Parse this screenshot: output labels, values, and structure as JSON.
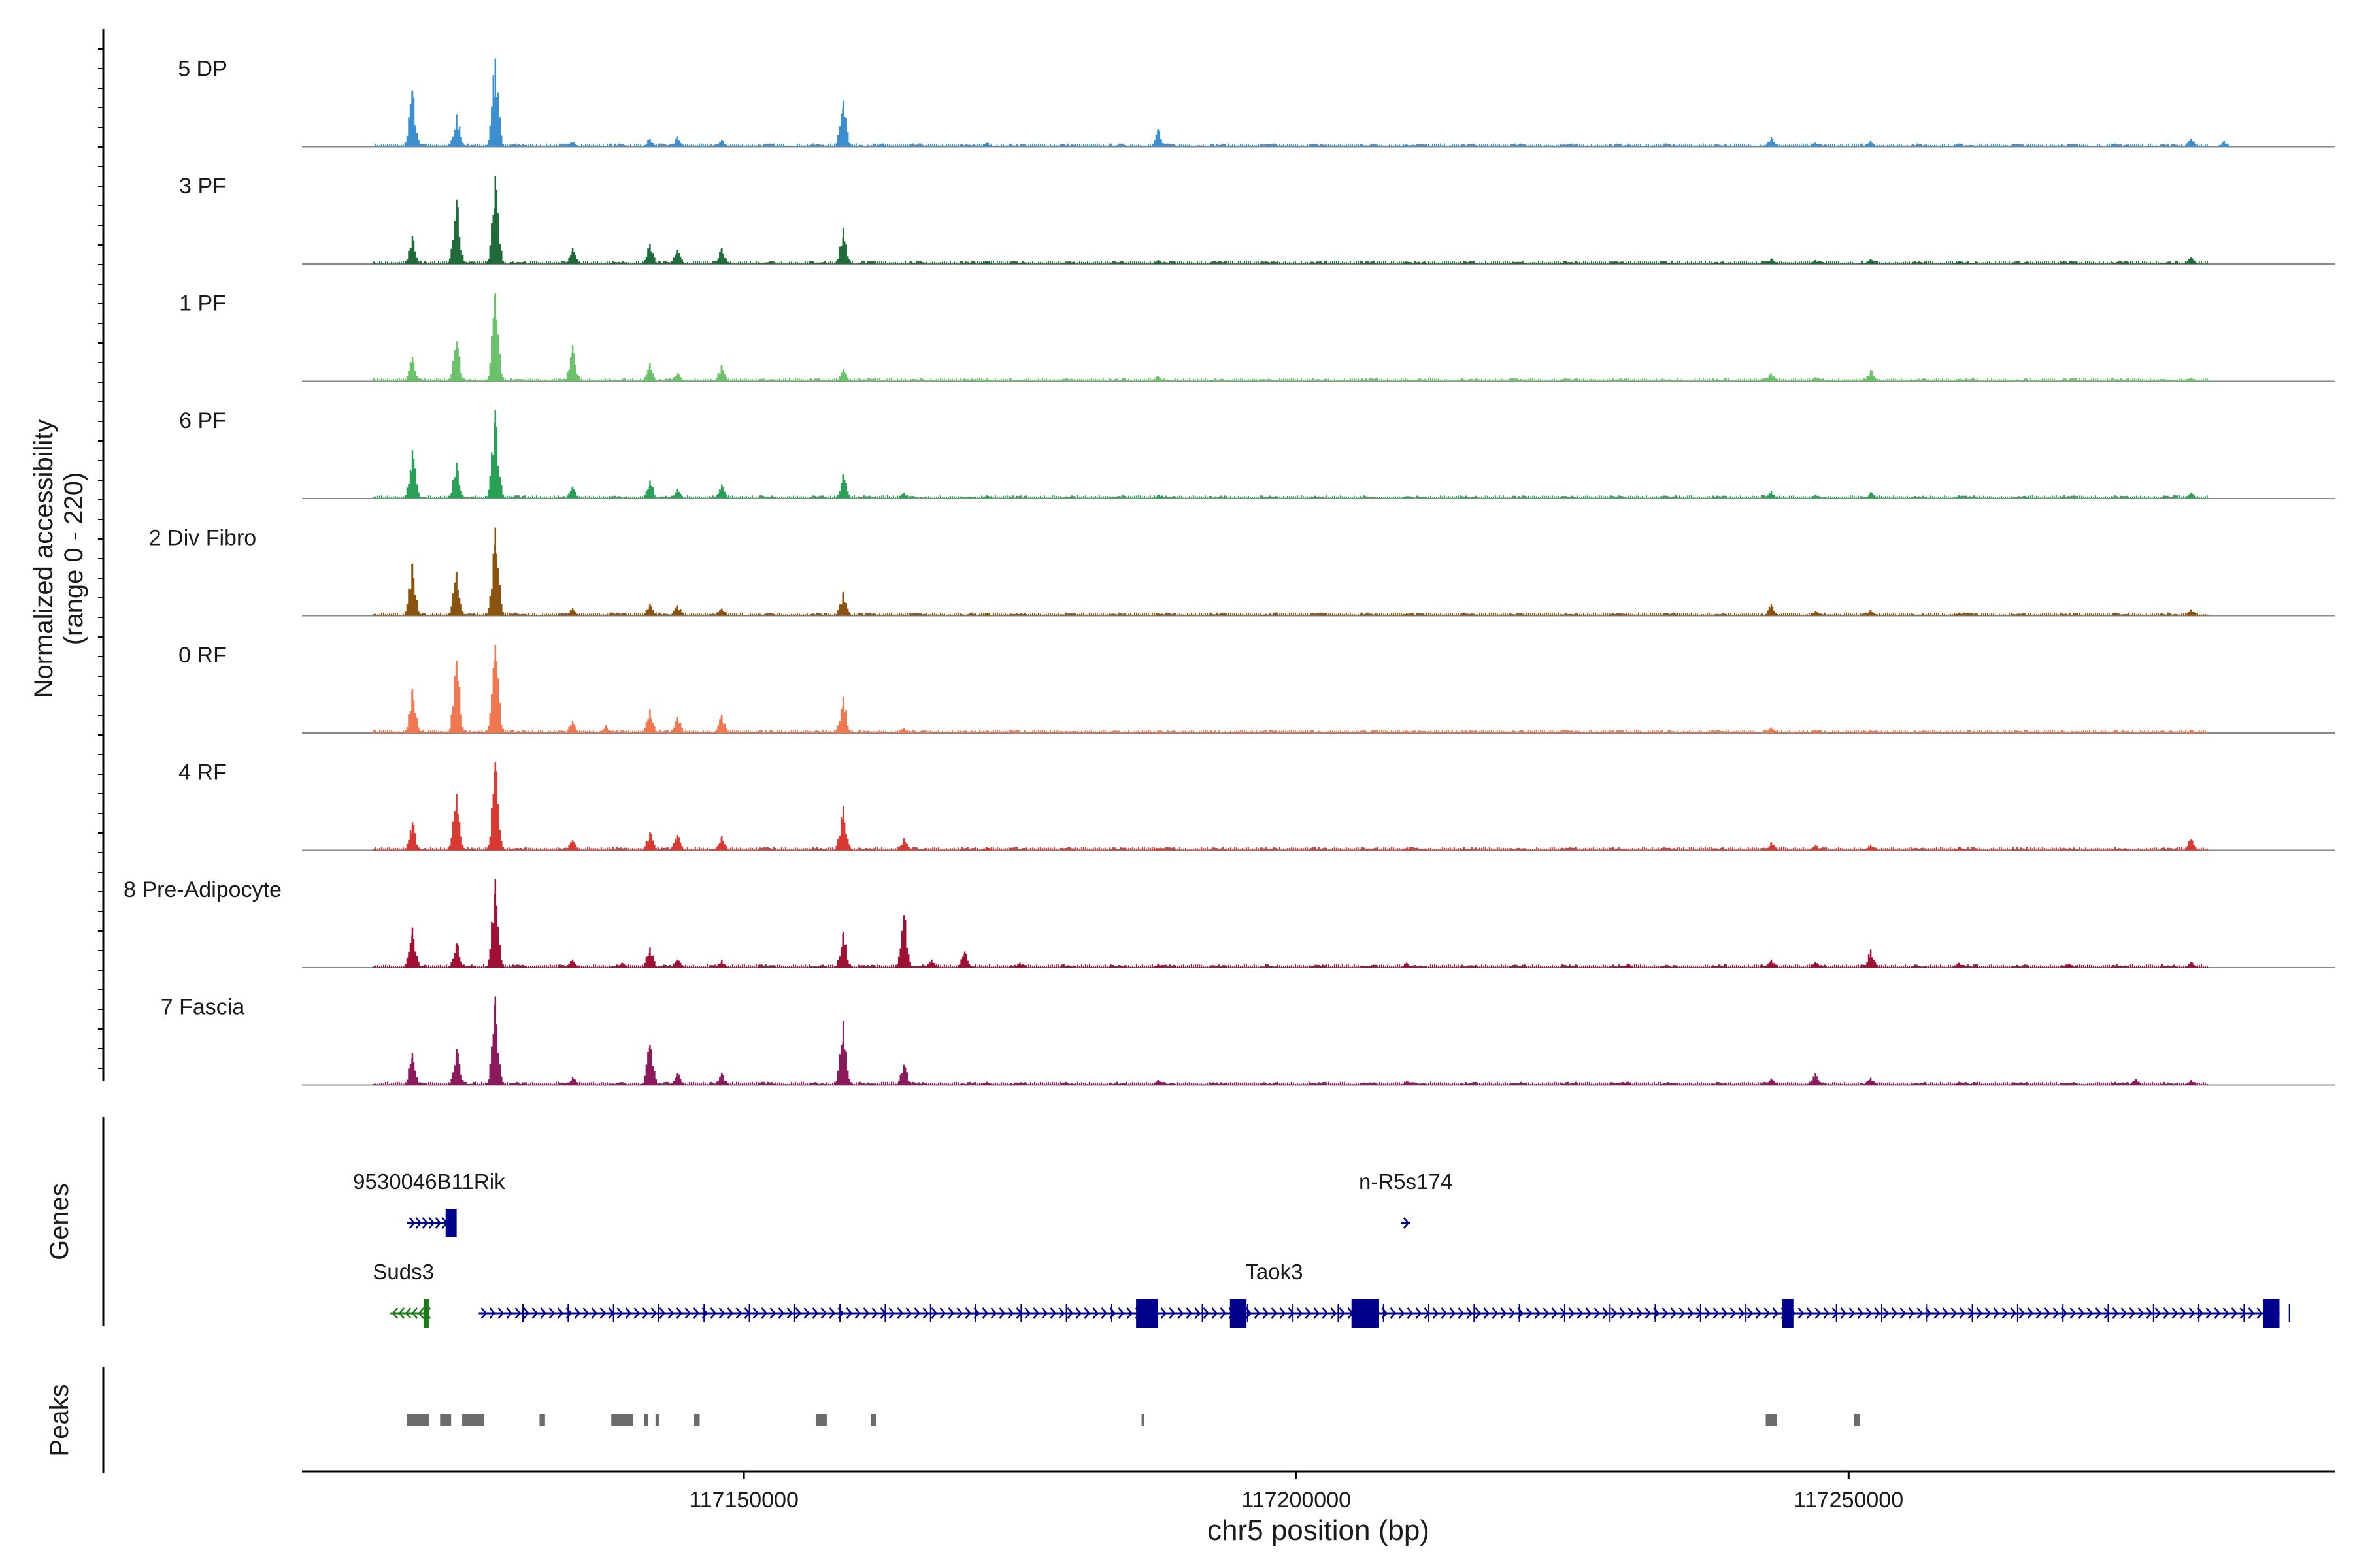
{
  "chart_data": {
    "type": "area",
    "title": "",
    "ylabel_line1": "Normalized accessibility",
    "ylabel_line2": "(range 0 - 220)",
    "yrange": [
      0,
      220
    ],
    "xlabel": "chr5 position (bp)",
    "xlim": [
      117110000,
      117294000
    ],
    "xticks": [
      {
        "value": 117150000,
        "label": "117150000"
      },
      {
        "value": 117200000,
        "label": "117200000"
      },
      {
        "value": 117250000,
        "label": "117250000"
      }
    ],
    "peak_positions": [
      117120000,
      117124000,
      117127500,
      117134500,
      117141500,
      117144000,
      117148000,
      117159000,
      117168000,
      117187500,
      117208000,
      117216000
    ],
    "tracks": [
      {
        "name": "5 DP",
        "color": "#3b8fcf",
        "peaks": [
          [
            117120000,
            140
          ],
          [
            117124000,
            80
          ],
          [
            117127500,
            220
          ],
          [
            117134500,
            12
          ],
          [
            117141500,
            20
          ],
          [
            117144000,
            26
          ],
          [
            117148000,
            16
          ],
          [
            117159000,
            115
          ],
          [
            117162500,
            8
          ],
          [
            117172000,
            10
          ],
          [
            117187500,
            45
          ],
          [
            117210000,
            6
          ],
          [
            117230000,
            5
          ],
          [
            117243000,
            24
          ],
          [
            117247000,
            10
          ],
          [
            117252000,
            14
          ],
          [
            117260000,
            8
          ],
          [
            117281000,
            20
          ],
          [
            117284000,
            14
          ]
        ]
      },
      {
        "name": "3 PF",
        "color": "#1f6b3a",
        "peaks": [
          [
            117120000,
            70
          ],
          [
            117124000,
            160
          ],
          [
            117127500,
            220
          ],
          [
            117134500,
            40
          ],
          [
            117141500,
            50
          ],
          [
            117144000,
            35
          ],
          [
            117148000,
            40
          ],
          [
            117159000,
            90
          ],
          [
            117172000,
            8
          ],
          [
            117187500,
            10
          ],
          [
            117210000,
            6
          ],
          [
            117243000,
            14
          ],
          [
            117247000,
            10
          ],
          [
            117252000,
            12
          ],
          [
            117260000,
            8
          ],
          [
            117281000,
            16
          ]
        ]
      },
      {
        "name": "1 PF",
        "color": "#6cc26a",
        "peaks": [
          [
            117120000,
            60
          ],
          [
            117124000,
            100
          ],
          [
            117127500,
            220
          ],
          [
            117134500,
            90
          ],
          [
            117141500,
            45
          ],
          [
            117144000,
            20
          ],
          [
            117148000,
            40
          ],
          [
            117159000,
            30
          ],
          [
            117172000,
            6
          ],
          [
            117187500,
            14
          ],
          [
            117210000,
            4
          ],
          [
            117243000,
            20
          ],
          [
            117247000,
            10
          ],
          [
            117252000,
            28
          ],
          [
            117260000,
            6
          ],
          [
            117281000,
            8
          ]
        ]
      },
      {
        "name": "6 PF",
        "color": "#28a055",
        "peaks": [
          [
            117120000,
            120
          ],
          [
            117124000,
            90
          ],
          [
            117127500,
            220
          ],
          [
            117134500,
            30
          ],
          [
            117141500,
            45
          ],
          [
            117144000,
            24
          ],
          [
            117148000,
            35
          ],
          [
            117159000,
            60
          ],
          [
            117164500,
            14
          ],
          [
            117172000,
            8
          ],
          [
            117187500,
            10
          ],
          [
            117210000,
            6
          ],
          [
            117243000,
            18
          ],
          [
            117247000,
            10
          ],
          [
            117252000,
            16
          ],
          [
            117260000,
            8
          ],
          [
            117281000,
            14
          ]
        ]
      },
      {
        "name": "2 Div Fibro",
        "color": "#8a5310",
        "peaks": [
          [
            117120000,
            130
          ],
          [
            117124000,
            110
          ],
          [
            117127500,
            220
          ],
          [
            117134500,
            20
          ],
          [
            117141500,
            30
          ],
          [
            117144000,
            26
          ],
          [
            117148000,
            18
          ],
          [
            117159000,
            60
          ],
          [
            117172000,
            6
          ],
          [
            117187500,
            6
          ],
          [
            117210000,
            6
          ],
          [
            117243000,
            28
          ],
          [
            117247000,
            12
          ],
          [
            117252000,
            14
          ],
          [
            117260000,
            8
          ],
          [
            117281000,
            16
          ]
        ]
      },
      {
        "name": "0 RF",
        "color": "#f07850",
        "peaks": [
          [
            117120000,
            110
          ],
          [
            117124000,
            180
          ],
          [
            117127500,
            220
          ],
          [
            117134500,
            30
          ],
          [
            117137500,
            20
          ],
          [
            117141500,
            60
          ],
          [
            117144000,
            40
          ],
          [
            117148000,
            45
          ],
          [
            117159000,
            90
          ],
          [
            117164500,
            12
          ],
          [
            117172000,
            6
          ],
          [
            117187500,
            6
          ],
          [
            117210000,
            6
          ],
          [
            117243000,
            14
          ],
          [
            117247000,
            8
          ],
          [
            117252000,
            6
          ],
          [
            117281000,
            8
          ]
        ]
      },
      {
        "name": "4 RF",
        "color": "#d83a32",
        "peaks": [
          [
            117120000,
            70
          ],
          [
            117124000,
            140
          ],
          [
            117127500,
            220
          ],
          [
            117134500,
            25
          ],
          [
            117141500,
            45
          ],
          [
            117144000,
            38
          ],
          [
            117148000,
            35
          ],
          [
            117159000,
            110
          ],
          [
            117164500,
            30
          ],
          [
            117172000,
            8
          ],
          [
            117187500,
            6
          ],
          [
            117210000,
            6
          ],
          [
            117243000,
            20
          ],
          [
            117247000,
            12
          ],
          [
            117252000,
            14
          ],
          [
            117260000,
            8
          ],
          [
            117281000,
            28
          ]
        ]
      },
      {
        "name": "8 Pre-Adipocyte",
        "color": "#a01035",
        "peaks": [
          [
            117120000,
            100
          ],
          [
            117124000,
            60
          ],
          [
            117127500,
            220
          ],
          [
            117134500,
            20
          ],
          [
            117139000,
            12
          ],
          [
            117141500,
            50
          ],
          [
            117144000,
            20
          ],
          [
            117148000,
            18
          ],
          [
            117159000,
            90
          ],
          [
            117164500,
            130
          ],
          [
            117167000,
            20
          ],
          [
            117170000,
            40
          ],
          [
            117175000,
            12
          ],
          [
            117187500,
            10
          ],
          [
            117210000,
            12
          ],
          [
            117230000,
            10
          ],
          [
            117243000,
            20
          ],
          [
            117247000,
            14
          ],
          [
            117252000,
            45
          ],
          [
            117260000,
            12
          ],
          [
            117270000,
            10
          ],
          [
            117281000,
            14
          ]
        ]
      },
      {
        "name": "7 Fascia",
        "color": "#8b1a5c",
        "peaks": [
          [
            117120000,
            80
          ],
          [
            117124000,
            90
          ],
          [
            117127500,
            220
          ],
          [
            117134500,
            20
          ],
          [
            117141500,
            100
          ],
          [
            117144000,
            30
          ],
          [
            117148000,
            30
          ],
          [
            117159000,
            160
          ],
          [
            117164500,
            50
          ],
          [
            117172000,
            8
          ],
          [
            117187500,
            12
          ],
          [
            117210000,
            10
          ],
          [
            117230000,
            8
          ],
          [
            117243000,
            16
          ],
          [
            117247000,
            30
          ],
          [
            117252000,
            18
          ],
          [
            117260000,
            8
          ],
          [
            117276000,
            14
          ],
          [
            117281000,
            12
          ]
        ]
      }
    ],
    "genes_label": "Genes",
    "peaks_label": "Peaks",
    "genes": [
      {
        "name": "9530046B11Rik",
        "color": "#00008b",
        "start": 117119500,
        "end": 117123500,
        "strand": "+",
        "row": 1,
        "exons": [
          [
            117123000,
            117124000
          ]
        ]
      },
      {
        "name": "n-R5s174",
        "color": "#00008b",
        "start": 117209500,
        "end": 117210300,
        "strand": "+",
        "row": 1,
        "exons": []
      },
      {
        "name": "Suds3",
        "color": "#1a7a1a",
        "start": 117118000,
        "end": 117121500,
        "strand": "-",
        "row": 2,
        "exons": [
          [
            117121000,
            117121400
          ]
        ]
      },
      {
        "name": "Taok3",
        "color": "#00008b",
        "start": 117126000,
        "end": 117289000,
        "strand": "+",
        "row": 2,
        "exons": [
          [
            117185500,
            117187500
          ],
          [
            117194000,
            117195500
          ],
          [
            117205000,
            117207500
          ],
          [
            117244000,
            117245000
          ],
          [
            117287500,
            117289000
          ]
        ]
      }
    ],
    "peak_regions": [
      [
        117119500,
        117121500
      ],
      [
        117122500,
        117123500
      ],
      [
        117124500,
        117126500
      ],
      [
        117131500,
        117132000
      ],
      [
        117138000,
        117140000
      ],
      [
        117141000,
        117141300
      ],
      [
        117142000,
        117142300
      ],
      [
        117145500,
        117146000
      ],
      [
        117156500,
        117157500
      ],
      [
        117161500,
        117162000
      ],
      [
        117186000,
        117186200
      ],
      [
        117242500,
        117243500
      ],
      [
        117250500,
        117251000
      ]
    ]
  }
}
